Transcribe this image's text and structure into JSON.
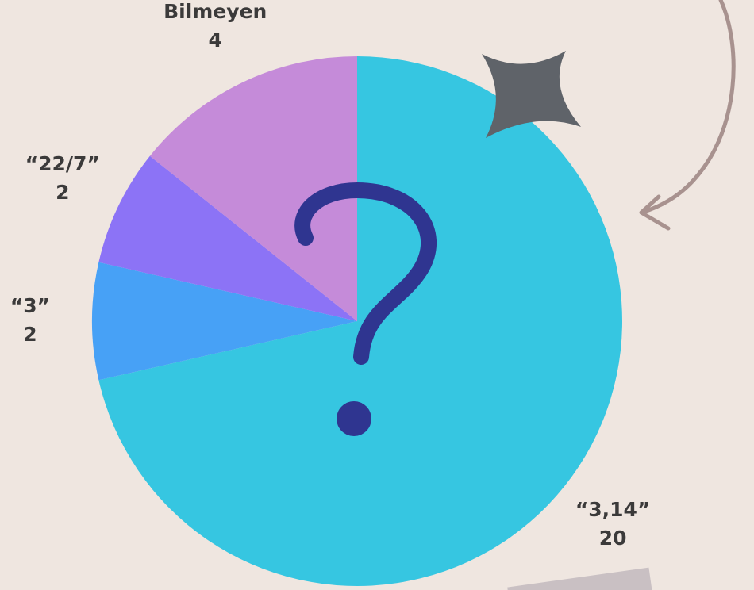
{
  "chart_data": {
    "type": "pie",
    "categories": [
      "“3,14”",
      "“3”",
      "“22/7”",
      "Bilmeyen"
    ],
    "values": [
      20,
      2,
      2,
      4
    ],
    "colors": [
      "#36c6e1",
      "#47a1f6",
      "#8c73f6",
      "#c58bd9"
    ]
  }
}
